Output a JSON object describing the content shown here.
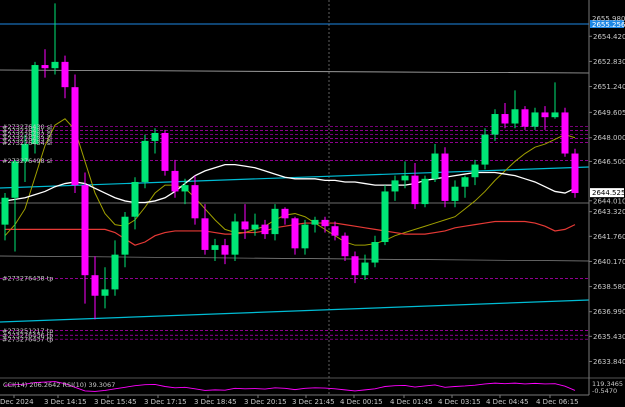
{
  "chart_data": {
    "type": "candlestick",
    "colors": {
      "background": "#000000",
      "bull": "#00e676",
      "bear": "#ff00ff",
      "ma_white": "#ffffff",
      "ma_red": "#e53935",
      "ma_olive": "#a0a000",
      "trendline": "#00bcd4",
      "order_line": "#c000c0",
      "rsi": "#ff00ff",
      "text": "#c8c8c8"
    },
    "y_ticks": [
      "2654.420",
      "2652.830",
      "2651.240",
      "2649.605",
      "2648.000",
      "2646.500",
      "2644.010",
      "2643.320",
      "2641.760",
      "2640.170",
      "2638.580",
      "2636.990",
      "2635.430",
      "2633.840"
    ],
    "y_tick_values": [
      2654.42,
      2652.83,
      2651.24,
      2649.605,
      2648.0,
      2646.5,
      2644.01,
      2643.32,
      2641.76,
      2640.17,
      2638.58,
      2636.99,
      2635.43,
      2633.84
    ],
    "y_range": [
      2633.3,
      2656.4
    ],
    "top_label": "2655.980",
    "top_label2": "2655.256",
    "current_price": "2644.525",
    "current_price_value": 2644.525,
    "x_ticks": [
      "Dec 2024",
      "3 Dec 14:15",
      "3 Dec 15:45",
      "3 Dec 17:15",
      "3 Dec 18:45",
      "3 Dec 20:15",
      "3 Dec 21:45",
      "4 Dec 00:15",
      "4 Dec 01:45",
      "4 Dec 03:15",
      "4 Dec 04:45",
      "4 Dec 06:15"
    ],
    "order_labels": [
      {
        "text": "#273276430 sl",
        "price": 2648.7
      },
      {
        "text": "#273276431 sl",
        "price": 2648.45
      },
      {
        "text": "#273276432 sl",
        "price": 2648.2
      },
      {
        "text": "#273276433 sl",
        "price": 2647.95
      },
      {
        "text": "#273276434 sl",
        "price": 2647.7
      },
      {
        "text": "#273276498 sl",
        "price": 2646.55
      },
      {
        "text": "#273276438 tp",
        "price": 2639.1
      },
      {
        "text": "#273251217 tp",
        "price": 2635.8
      },
      {
        "text": "#273276436 tp",
        "price": 2635.5
      },
      {
        "text": "#273276437 tp",
        "price": 2635.25
      }
    ],
    "indicator_label": "CCI(14) 206.2642 RSI(10) 39.3067",
    "indicator_right": [
      "119.3465",
      "-0.5470"
    ],
    "candles": [
      [
        2642.5,
        2644.5,
        2641.5,
        2644.2
      ],
      [
        2644.2,
        2646.6,
        2640.8,
        2646.5
      ],
      [
        2646.5,
        2648.2,
        2645.2,
        2647.6
      ],
      [
        2647.6,
        2652.8,
        2647.0,
        2652.6
      ],
      [
        2652.6,
        2653.6,
        2651.8,
        2652.4
      ],
      [
        2652.4,
        2656.5,
        2652.0,
        2652.8
      ],
      [
        2652.8,
        2653.2,
        2650.5,
        2651.2
      ],
      [
        2651.2,
        2652.0,
        2644.5,
        2645.0
      ],
      [
        2645.0,
        2645.8,
        2637.5,
        2639.3
      ],
      [
        2639.3,
        2640.5,
        2636.5,
        2638.0
      ],
      [
        2638.0,
        2639.8,
        2637.2,
        2638.4
      ],
      [
        2638.4,
        2641.5,
        2638.0,
        2640.6
      ],
      [
        2640.6,
        2643.3,
        2639.8,
        2643.0
      ],
      [
        2643.0,
        2645.5,
        2642.2,
        2645.2
      ],
      [
        2645.2,
        2648.2,
        2644.8,
        2647.8
      ],
      [
        2647.8,
        2648.6,
        2647.0,
        2648.3
      ],
      [
        2648.3,
        2648.5,
        2645.6,
        2645.9
      ],
      [
        2645.9,
        2646.6,
        2644.2,
        2644.6
      ],
      [
        2644.6,
        2645.4,
        2643.8,
        2645.0
      ],
      [
        2645.0,
        2645.6,
        2642.5,
        2642.9
      ],
      [
        2642.9,
        2643.8,
        2640.6,
        2640.9
      ],
      [
        2640.9,
        2641.6,
        2640.2,
        2641.2
      ],
      [
        2641.2,
        2641.6,
        2640.0,
        2640.6
      ],
      [
        2640.6,
        2643.2,
        2640.2,
        2642.7
      ],
      [
        2642.7,
        2643.8,
        2641.6,
        2642.2
      ],
      [
        2642.2,
        2643.2,
        2641.8,
        2642.5
      ],
      [
        2642.5,
        2642.8,
        2641.6,
        2641.9
      ],
      [
        2641.9,
        2643.8,
        2641.5,
        2643.5
      ],
      [
        2643.5,
        2643.6,
        2642.5,
        2642.9
      ],
      [
        2642.9,
        2643.0,
        2640.6,
        2641.0
      ],
      [
        2641.0,
        2642.8,
        2640.6,
        2642.5
      ],
      [
        2642.5,
        2643.0,
        2642.0,
        2642.8
      ],
      [
        2642.8,
        2643.0,
        2642.0,
        2642.4
      ],
      [
        2642.4,
        2642.7,
        2641.5,
        2641.8
      ],
      [
        2641.8,
        2642.0,
        2640.2,
        2640.5
      ],
      [
        2640.5,
        2640.8,
        2638.8,
        2639.3
      ],
      [
        2639.3,
        2640.6,
        2639.0,
        2640.1
      ],
      [
        2640.1,
        2641.8,
        2639.8,
        2641.4
      ],
      [
        2641.4,
        2645.0,
        2641.2,
        2644.6
      ],
      [
        2644.6,
        2645.6,
        2644.0,
        2645.3
      ],
      [
        2645.3,
        2646.5,
        2644.8,
        2645.6
      ],
      [
        2645.6,
        2646.4,
        2643.5,
        2643.8
      ],
      [
        2643.8,
        2645.6,
        2643.6,
        2645.4
      ],
      [
        2645.4,
        2647.6,
        2645.2,
        2647.0
      ],
      [
        2647.0,
        2647.4,
        2643.6,
        2644.0
      ],
      [
        2644.0,
        2645.3,
        2643.6,
        2644.9
      ],
      [
        2644.9,
        2645.6,
        2644.2,
        2645.5
      ],
      [
        2645.5,
        2646.6,
        2645.0,
        2646.3
      ],
      [
        2646.3,
        2648.6,
        2646.0,
        2648.2
      ],
      [
        2648.2,
        2649.8,
        2647.8,
        2649.5
      ],
      [
        2649.5,
        2650.2,
        2648.6,
        2648.9
      ],
      [
        2648.9,
        2651.0,
        2648.6,
        2649.8
      ],
      [
        2649.8,
        2650.0,
        2648.5,
        2648.7
      ],
      [
        2648.7,
        2649.9,
        2648.5,
        2649.6
      ],
      [
        2649.6,
        2650.0,
        2648.5,
        2649.3
      ],
      [
        2649.3,
        2651.5,
        2649.2,
        2649.6
      ],
      [
        2649.6,
        2649.9,
        2646.8,
        2647.0
      ],
      [
        2647.0,
        2647.3,
        2644.2,
        2644.5
      ]
    ],
    "ma_white": [
      2644.0,
      2644.1,
      2644.2,
      2644.4,
      2644.6,
      2644.9,
      2645.1,
      2645.2,
      2645.1,
      2644.8,
      2644.5,
      2644.2,
      2644.0,
      2643.9,
      2643.9,
      2644.0,
      2644.2,
      2644.6,
      2645.1,
      2645.6,
      2645.9,
      2646.1,
      2646.3,
      2646.3,
      2646.2,
      2646.1,
      2645.9,
      2645.7,
      2645.5,
      2645.4,
      2645.4,
      2645.4,
      2645.3,
      2645.3,
      2645.2,
      2645.2,
      2645.1,
      2645.0,
      2645.0,
      2645.0,
      2645.0,
      2645.1,
      2645.3,
      2645.4,
      2645.5,
      2645.6,
      2645.7,
      2645.8,
      2645.8,
      2645.8,
      2645.7,
      2645.6,
      2645.4,
      2645.2,
      2644.9,
      2644.6,
      2644.5,
      2644.8
    ],
    "ma_red": [
      2642.2,
      2642.2,
      2642.2,
      2642.2,
      2642.2,
      2642.2,
      2642.2,
      2642.2,
      2642.2,
      2642.2,
      2642.2,
      2642.0,
      2641.6,
      2641.2,
      2641.4,
      2641.8,
      2642.0,
      2642.1,
      2642.1,
      2642.1,
      2642.1,
      2642.0,
      2641.9,
      2641.9,
      2642.0,
      2642.0,
      2642.1,
      2642.3,
      2642.4,
      2642.5,
      2642.6,
      2642.6,
      2642.6,
      2642.6,
      2642.5,
      2642.4,
      2642.3,
      2642.2,
      2642.1,
      2642.0,
      2641.9,
      2641.9,
      2641.9,
      2642.0,
      2642.1,
      2642.3,
      2642.4,
      2642.5,
      2642.6,
      2642.7,
      2642.7,
      2642.7,
      2642.7,
      2642.6,
      2642.4,
      2642.1,
      2642.2,
      2642.5
    ],
    "ma_olive": [
      2641.8,
      2642.5,
      2643.5,
      2645.5,
      2647.5,
      2648.8,
      2649.2,
      2648.5,
      2646.5,
      2644.5,
      2643.2,
      2642.5,
      2642.4,
      2642.8,
      2643.6,
      2644.5,
      2645.0,
      2645.0,
      2644.8,
      2644.2,
      2643.5,
      2642.8,
      2642.2,
      2642.0,
      2642.0,
      2642.2,
      2642.4,
      2642.8,
      2643.1,
      2643.2,
      2643.0,
      2642.6,
      2642.2,
      2641.8,
      2641.4,
      2641.2,
      2641.2,
      2641.3,
      2641.5,
      2641.8,
      2642.0,
      2642.2,
      2642.4,
      2642.6,
      2642.8,
      2643.0,
      2643.5,
      2644.0,
      2644.6,
      2645.3,
      2645.9,
      2646.5,
      2647.0,
      2647.4,
      2647.6,
      2647.9,
      2648.2,
      2648.0
    ],
    "rsi": [
      60,
      62,
      64,
      70,
      72,
      74,
      66,
      52,
      38,
      36,
      40,
      46,
      52,
      58,
      62,
      63,
      55,
      50,
      52,
      46,
      40,
      42,
      41,
      48,
      46,
      47,
      45,
      50,
      48,
      43,
      48,
      50,
      49,
      46,
      42,
      38,
      42,
      46,
      55,
      58,
      59,
      53,
      57,
      61,
      52,
      55,
      57,
      60,
      65,
      68,
      66,
      68,
      65,
      67,
      65,
      66,
      56,
      40
    ]
  }
}
